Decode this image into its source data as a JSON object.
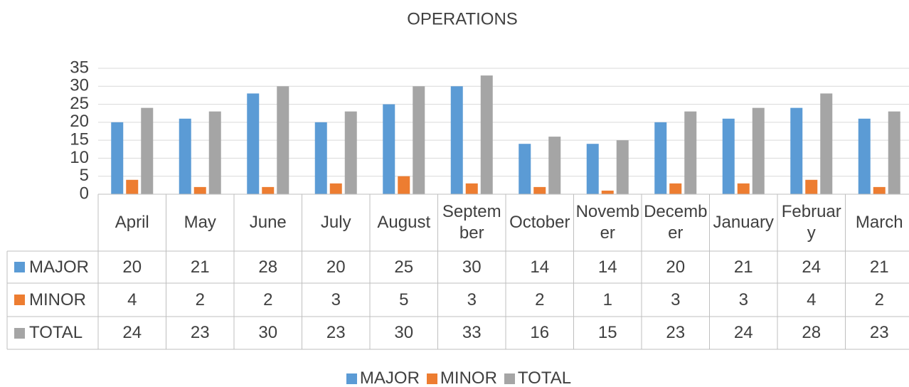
{
  "chart_data": {
    "type": "bar",
    "title": "OPERATIONS",
    "categories": [
      "April",
      "May",
      "June",
      "July",
      "August",
      "September",
      "October",
      "November",
      "December",
      "January",
      "February",
      "March"
    ],
    "series": [
      {
        "name": "MAJOR",
        "color": "#5b9bd5",
        "values": [
          20,
          21,
          28,
          20,
          25,
          30,
          14,
          14,
          20,
          21,
          24,
          21
        ]
      },
      {
        "name": "MINOR",
        "color": "#ed7d31",
        "values": [
          4,
          2,
          2,
          3,
          5,
          3,
          2,
          1,
          3,
          3,
          4,
          2
        ]
      },
      {
        "name": "TOTAL",
        "color": "#a5a5a5",
        "values": [
          24,
          23,
          30,
          23,
          30,
          33,
          16,
          15,
          23,
          24,
          28,
          23
        ]
      }
    ],
    "ylim": [
      0,
      35
    ],
    "yticks": [
      0,
      5,
      10,
      15,
      20,
      25,
      30,
      35
    ],
    "grid": true,
    "legend": "bottom"
  }
}
